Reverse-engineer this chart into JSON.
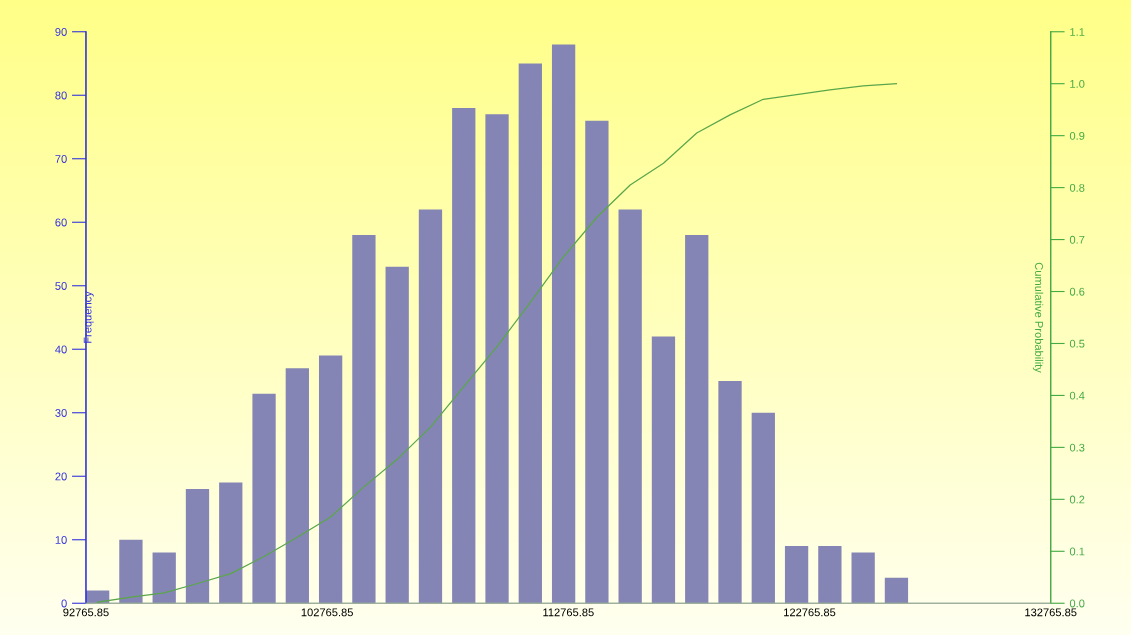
{
  "chart_data": {
    "type": "bar",
    "ylabel": "Frequency",
    "y2label": "Cumulative Probability",
    "x": [
      93250,
      94630,
      96010,
      97390,
      98770,
      100150,
      101530,
      102910,
      104290,
      105670,
      107050,
      108430,
      109810,
      111190,
      112570,
      113950,
      115330,
      116710,
      118090,
      119470,
      120850,
      122230,
      123610,
      124990,
      126370
    ],
    "series": [
      {
        "color": "#8585b5",
        "values": [
          2,
          10,
          8,
          18,
          19,
          33,
          37,
          39,
          58,
          53,
          62,
          78,
          77,
          85,
          88,
          76,
          62,
          42,
          58,
          35,
          30,
          9,
          9,
          8,
          4
        ]
      },
      {
        "type": "line",
        "axis": "y2",
        "color": "#5aa64a",
        "x": [
          93250,
          94630,
          96010,
          97390,
          98770,
          100150,
          101530,
          102910,
          104290,
          105670,
          107050,
          108430,
          109810,
          111190,
          112570,
          113950,
          115330,
          116710,
          118090,
          119470,
          120850,
          122230,
          123610,
          124990,
          126370
        ],
        "values": [
          0.002,
          0.012,
          0.02,
          0.038,
          0.057,
          0.09,
          0.127,
          0.166,
          0.224,
          0.277,
          0.339,
          0.417,
          0.494,
          0.579,
          0.667,
          0.743,
          0.805,
          0.847,
          0.905,
          0.94,
          0.97,
          0.979,
          0.988,
          0.996,
          1.0
        ]
      }
    ],
    "xlim": [
      92765.85,
      132765.85
    ],
    "xticks": [
      92765.85,
      102765.85,
      112765.85,
      122765.85,
      132765.85
    ],
    "ylim": [
      0,
      90
    ],
    "yticks": [
      0,
      10,
      20,
      30,
      40,
      50,
      60,
      70,
      80,
      90
    ],
    "y2lim": [
      0,
      1.1
    ],
    "y2ticks": [
      {
        "value": 0,
        "label": "0.0"
      },
      0.1,
      0.2,
      0.3,
      0.4,
      0.5,
      0.6,
      0.7,
      0.8,
      0.9,
      {
        "value": 1,
        "label": "1.0"
      },
      1.1
    ],
    "grid": false,
    "legend": false
  }
}
